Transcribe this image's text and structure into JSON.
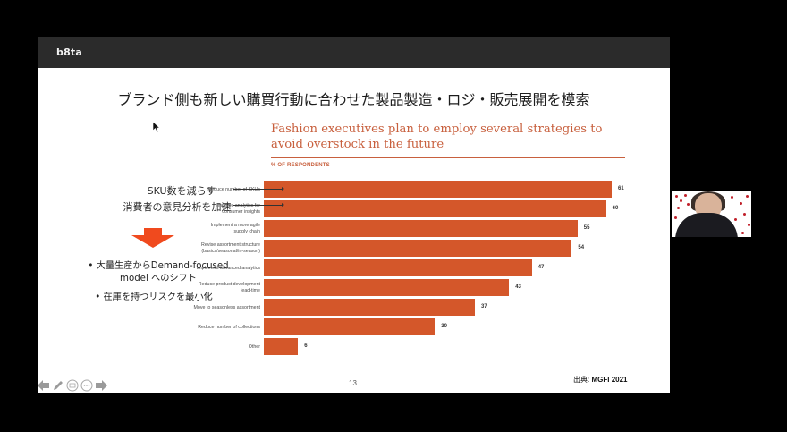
{
  "app": {
    "brand": "b8ta"
  },
  "slide": {
    "title": "ブランド側も新しい購買行動に合わせた製品製造・ロジ・販売展開を模索",
    "page_number": "13",
    "source_label": "出典:",
    "source_value": "MGFI 2021",
    "annotations": [
      "SKU数を減らす",
      "消費者の意見分析を加速"
    ],
    "bullets": [
      "• 大量生産からDemand-focused model へのシフト",
      "• 在庫を持つリスクを最小化"
    ],
    "bullet_lines": [
      [
        "• 大量生産からDemand-focused",
        "model へのシフト"
      ],
      [
        "• 在庫を持つリスクを最小化"
      ]
    ]
  },
  "nav_controls": {
    "prev": "previous-slide",
    "pen": "pen-tool",
    "captions": "captions",
    "more": "more-options",
    "next": "next-slide"
  },
  "colors": {
    "accent": "#d4572a",
    "title_accent": "#c8603e",
    "arrow": "#f04a1e",
    "header_bg": "#2b2b2b"
  },
  "chart_data": {
    "type": "bar",
    "orientation": "horizontal",
    "title": "Fashion executives plan to employ several strategies to avoid overstock in the future",
    "subtitle": "% OF RESPONDENTS",
    "xlabel": "",
    "ylabel": "% of respondents",
    "xlim": [
      0,
      70
    ],
    "grid": false,
    "legend": null,
    "categories": [
      "Reduce number of SKUs",
      "Improve analytics for consumer insights",
      "Implement a more agile supply chain",
      "Revise assortment structure (basics/seasonal/in-season)",
      "Implement advanced analytics",
      "Reduce product development lead-time",
      "Move to seasonless assortment",
      "Reduce number of collections",
      "Other"
    ],
    "label_lines": [
      [
        "Reduce number of SKUs"
      ],
      [
        "Improve analytics for",
        "consumer insights"
      ],
      [
        "Implement a more agile",
        "supply chain"
      ],
      [
        "Revise assortment structure",
        "(basics/seasonal/in-season)"
      ],
      [
        "Implement advanced analytics"
      ],
      [
        "Reduce product development",
        "lead-time"
      ],
      [
        "Move to seasonless assortment"
      ],
      [
        "Reduce number of collections"
      ],
      [
        "Other"
      ]
    ],
    "values": [
      61,
      60,
      55,
      54,
      47,
      43,
      37,
      30,
      6
    ],
    "value_labels": [
      "61",
      "60",
      "55",
      "54",
      "47",
      "43",
      "37",
      "30",
      "6"
    ]
  }
}
